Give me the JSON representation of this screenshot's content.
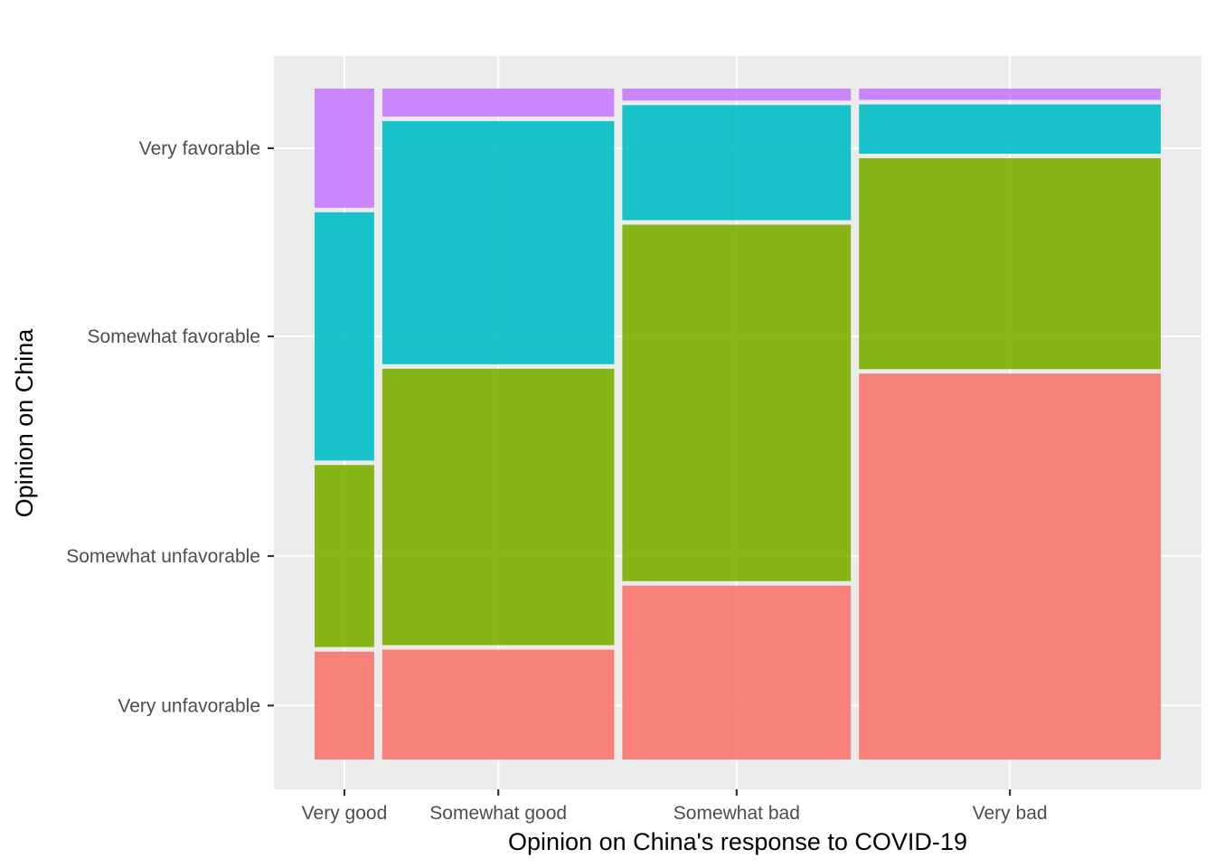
{
  "chart_data": {
    "type": "mosaic",
    "xlabel": "Opinion on China's response to COVID-19",
    "ylabel": "Opinion on China",
    "x_categories": [
      "Very good",
      "Somewhat good",
      "Somewhat bad",
      "Very bad"
    ],
    "x_widths": [
      0.0716,
      0.2785,
      0.2745,
      0.3624
    ],
    "y_categories": [
      "Very unfavorable",
      "Somewhat unfavorable",
      "Somewhat favorable",
      "Very favorable"
    ],
    "y_proportions": {
      "Very good": [
        0.163,
        0.275,
        0.375,
        0.18
      ],
      "Somewhat good": [
        0.165,
        0.415,
        0.365,
        0.042
      ],
      "Somewhat bad": [
        0.26,
        0.533,
        0.172,
        0.018
      ],
      "Very bad": [
        0.58,
        0.317,
        0.074,
        0.017
      ]
    },
    "colors": {
      "Very unfavorable": "#F8766D",
      "Somewhat unfavorable": "#7CAE00",
      "Somewhat favorable": "#00BFC4",
      "Very favorable": "#C77CFF"
    },
    "panel_background": "#EBEBEB",
    "grid": true,
    "legend": "none"
  }
}
